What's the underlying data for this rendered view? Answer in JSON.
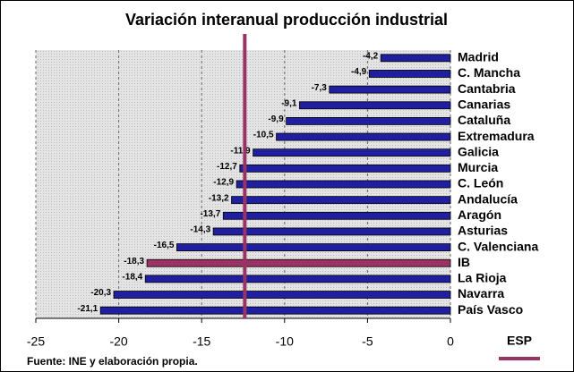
{
  "chart_data": {
    "type": "bar",
    "orientation": "horizontal",
    "title": "Variación interanual producción industrial",
    "categories": [
      "Madrid",
      "C. Mancha",
      "Cantabria",
      "Canarias",
      "Cataluña",
      "Extremadura",
      "Galicia",
      "Murcia",
      "C. León",
      "Andalucía",
      "Aragón",
      "Asturias",
      "C. Valenciana",
      "IB",
      "La Rioja",
      "Navarra",
      "País Vasco"
    ],
    "values": [
      -4.2,
      -4.9,
      -7.3,
      -9.1,
      -9.9,
      -10.5,
      -11.9,
      -12.7,
      -12.9,
      -13.2,
      -13.7,
      -14.3,
      -16.5,
      -18.3,
      -18.4,
      -20.3,
      -21.1
    ],
    "value_labels": [
      "-4,2",
      "-4,9",
      "-7,3",
      "-9,1",
      "-9,9",
      "-10,5",
      "-11,9",
      "-12,7",
      "-12,9",
      "-13,2",
      "-13,7",
      "-14,3",
      "-16,5",
      "-18,3",
      "-18,4",
      "-20,3",
      "-21,1"
    ],
    "colors": [
      "#1f1f9f",
      "#1f1f9f",
      "#1f1f9f",
      "#1f1f9f",
      "#1f1f9f",
      "#1f1f9f",
      "#1f1f9f",
      "#1f1f9f",
      "#1f1f9f",
      "#1f1f9f",
      "#1f1f9f",
      "#1f1f9f",
      "#1f1f9f",
      "#993366",
      "#1f1f9f",
      "#1f1f9f",
      "#1f1f9f"
    ],
    "xlim": [
      -25,
      0
    ],
    "xticks": [
      -25,
      -20,
      -15,
      -10,
      -5,
      0
    ],
    "grid": true,
    "reference_line": {
      "name": "ESP",
      "value": -12.4,
      "color": "#993366"
    },
    "source": "Fuente: INE y elaboración propia."
  }
}
